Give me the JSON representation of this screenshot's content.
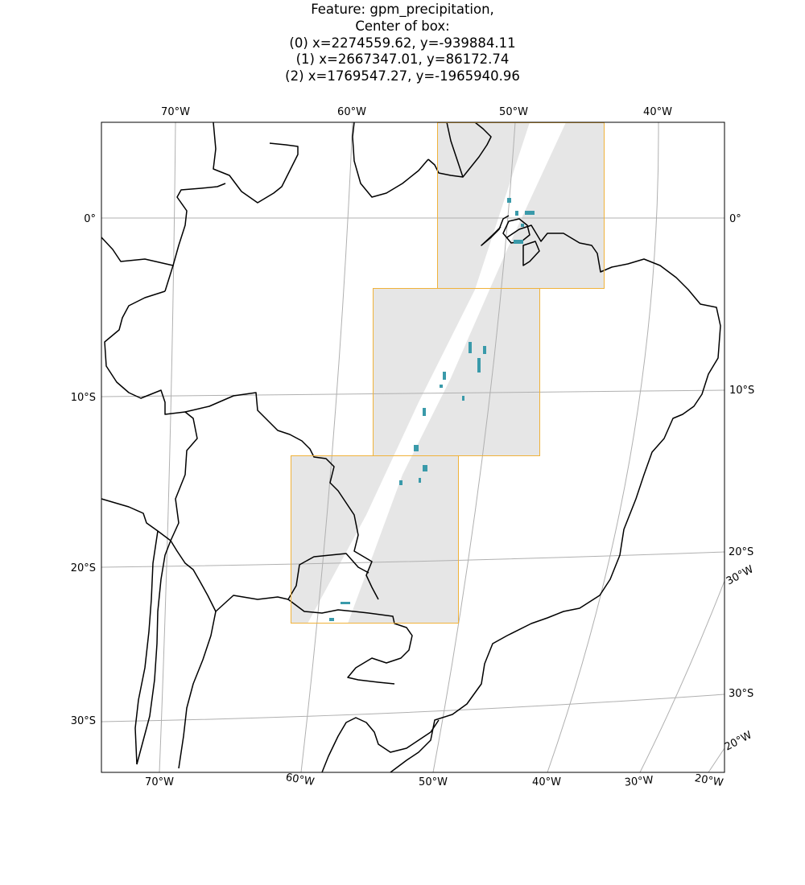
{
  "figure": {
    "title_lines": [
      "Feature: gpm_precipitation,",
      "Center of box:",
      "(0) x=2274559.62, y=-939884.11",
      "(1) x=2667347.01, y=86172.74",
      "(2) x=1769547.27, y=-1965940.96"
    ]
  },
  "map": {
    "projection": "geostationary-like perspective (curved graticule)",
    "extent_description": "Eastern South America, approx. 75°W–35°W, 5°N–33°S",
    "land_color": "#ffffff",
    "coastline_color": "#000000",
    "gridline_color": "#b0b0b0",
    "swath_outside_color": "#e6e6e6",
    "swath_inside_color": "#ffffff",
    "box_edge_color": "#f0b23a",
    "precip_color": "#3a9aaa"
  },
  "ticks": {
    "top": [
      "70°W",
      "60°W",
      "50°W",
      "40°W"
    ],
    "left": [
      "0°",
      "10°S",
      "20°S",
      "30°S"
    ],
    "right": [
      "0°",
      "10°S",
      "20°S",
      "30°W",
      "30°S",
      "20°W"
    ],
    "bottom": [
      "70°W",
      "60°W",
      "50°W",
      "40°W",
      "30°W",
      "20°W"
    ]
  },
  "boxes": [
    {
      "index": 0,
      "label": "(0)"
    },
    {
      "index": 1,
      "label": "(1)"
    },
    {
      "index": 2,
      "label": "(2)"
    }
  ]
}
